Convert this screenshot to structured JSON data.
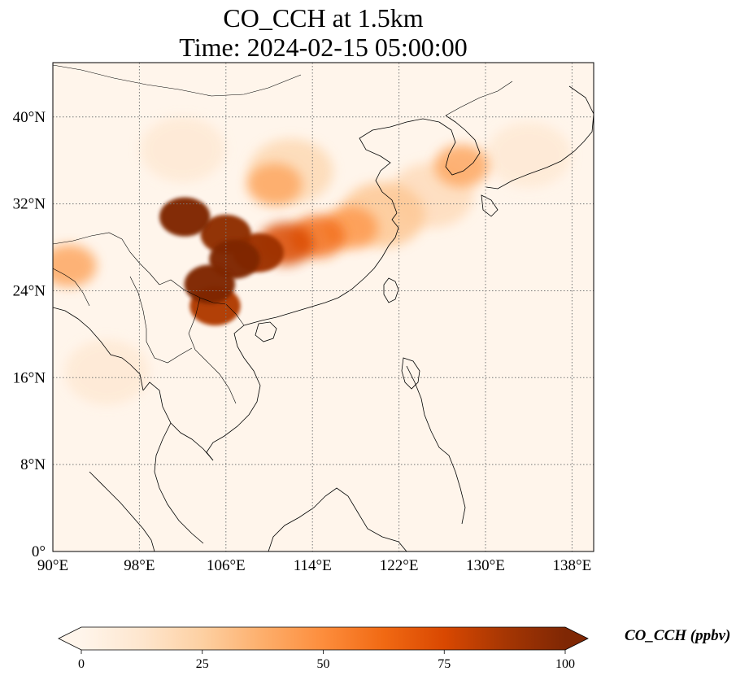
{
  "title": {
    "line1": "CO_CCH at 1.5km",
    "line2": "Time: 2024-02-15 05:00:00"
  },
  "map": {
    "lon_range": [
      90,
      140
    ],
    "lat_range": [
      0,
      45
    ],
    "lat_ticks": [
      {
        "value": 0,
        "label": "0°"
      },
      {
        "value": 8,
        "label": "8°N"
      },
      {
        "value": 16,
        "label": "16°N"
      },
      {
        "value": 24,
        "label": "24°N"
      },
      {
        "value": 32,
        "label": "32°N"
      },
      {
        "value": 40,
        "label": "40°N"
      }
    ],
    "lon_ticks": [
      {
        "value": 90,
        "label": "90°E"
      },
      {
        "value": 98,
        "label": "98°E"
      },
      {
        "value": 106,
        "label": "106°E"
      },
      {
        "value": 114,
        "label": "114°E"
      },
      {
        "value": 122,
        "label": "122°E"
      },
      {
        "value": 130,
        "label": "130°E"
      },
      {
        "value": 138,
        "label": "138°E"
      }
    ],
    "gridlines": true,
    "background_color": "#fff5eb",
    "coastline_color": "#000000"
  },
  "colorbar": {
    "label": "CO_CCH (ppbv)",
    "min": 0,
    "max": 100,
    "extend": "both",
    "ticks": [
      {
        "value": 0,
        "label": "0"
      },
      {
        "value": 25,
        "label": "25"
      },
      {
        "value": 50,
        "label": "50"
      },
      {
        "value": 75,
        "label": "75"
      },
      {
        "value": 100,
        "label": "100"
      }
    ],
    "colormap": [
      "#fff5eb",
      "#fee6ce",
      "#fdd0a2",
      "#fdae6b",
      "#fd8d3c",
      "#f16913",
      "#d94801",
      "#a63603",
      "#7f2704"
    ]
  },
  "chart_data": {
    "type": "heatmap",
    "variable": "CO_CCH",
    "units": "ppbv",
    "time": "2024-02-15 05:00:00",
    "level": "1.5km",
    "plumes": [
      {
        "lon": 106.8,
        "lat": 26.9,
        "value": 100
      },
      {
        "lon": 104.5,
        "lat": 24.6,
        "value": 100
      },
      {
        "lon": 102.2,
        "lat": 30.8,
        "value": 100
      },
      {
        "lon": 106.0,
        "lat": 29.2,
        "value": 95
      },
      {
        "lon": 105.0,
        "lat": 22.6,
        "value": 85
      },
      {
        "lon": 109.0,
        "lat": 27.5,
        "value": 90
      },
      {
        "lon": 111.5,
        "lat": 28.3,
        "value": 75
      },
      {
        "lon": 114.5,
        "lat": 29.0,
        "value": 60
      },
      {
        "lon": 117.5,
        "lat": 29.8,
        "value": 45
      },
      {
        "lon": 120.5,
        "lat": 31.0,
        "value": 28
      },
      {
        "lon": 110.5,
        "lat": 33.8,
        "value": 40
      },
      {
        "lon": 112.0,
        "lat": 35.0,
        "value": 20
      },
      {
        "lon": 127.8,
        "lat": 35.5,
        "value": 40
      },
      {
        "lon": 125.0,
        "lat": 32.8,
        "value": 18
      },
      {
        "lon": 91.5,
        "lat": 26.3,
        "value": 40
      },
      {
        "lon": 95.0,
        "lat": 16.5,
        "value": 10
      },
      {
        "lon": 134.0,
        "lat": 36.5,
        "value": 10
      },
      {
        "lon": 102.0,
        "lat": 37.0,
        "value": 10
      }
    ]
  }
}
